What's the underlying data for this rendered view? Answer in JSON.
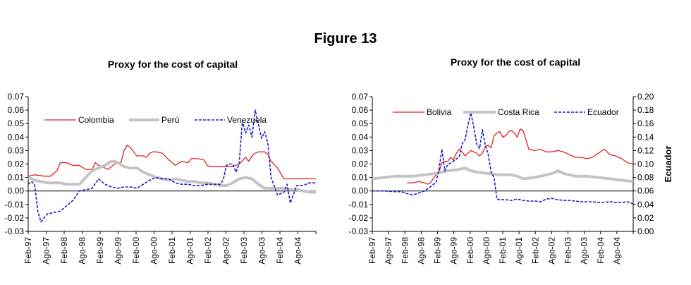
{
  "figure_title": "Figure 13",
  "chart_data": [
    {
      "type": "line",
      "title": "Proxy for the cost of capital",
      "xlabel": "",
      "ylabel": "",
      "ylim": [
        -0.03,
        0.07
      ],
      "yticks": [
        "0.07",
        "0.06",
        "0.05",
        "0.04",
        "0.03",
        "0.02",
        "0.01",
        "0.00",
        "-0.01",
        "-0.02",
        "-0.03"
      ],
      "x_range": [
        0,
        90
      ],
      "xticks": [
        "Feb-97",
        "Ago-97",
        "Feb-98",
        "Ago-98",
        "Feb-99",
        "Ago-99",
        "Feb-00",
        "Ago-00",
        "Feb-01",
        "Ago-01",
        "Feb-02",
        "Ago-02",
        "Feb-03",
        "Ago-03",
        "Feb-04",
        "Ago-04"
      ],
      "legend_position": "top",
      "series": [
        {
          "name": "Colombia",
          "color": "#e02020",
          "style": "solid",
          "x": [
            0,
            2,
            5,
            7,
            9,
            10,
            12,
            14,
            16,
            18,
            20,
            21,
            22,
            24,
            25,
            27,
            29,
            30,
            31,
            32,
            34,
            36,
            37,
            38,
            39,
            40,
            42,
            44,
            46,
            48,
            50,
            51,
            53,
            55,
            56,
            57,
            58,
            60,
            62,
            64,
            66,
            68,
            69,
            70,
            71,
            72,
            74,
            75,
            76,
            78,
            80,
            82,
            84,
            86,
            88,
            90
          ],
          "values": [
            0.011,
            0.012,
            0.011,
            0.011,
            0.015,
            0.021,
            0.021,
            0.019,
            0.019,
            0.016,
            0.016,
            0.021,
            0.019,
            0.017,
            0.016,
            0.02,
            0.021,
            0.03,
            0.034,
            0.032,
            0.026,
            0.026,
            0.025,
            0.028,
            0.029,
            0.029,
            0.028,
            0.023,
            0.019,
            0.022,
            0.021,
            0.024,
            0.024,
            0.023,
            0.019,
            0.018,
            0.018,
            0.018,
            0.018,
            0.018,
            0.02,
            0.025,
            0.022,
            0.026,
            0.028,
            0.029,
            0.029,
            0.027,
            0.022,
            0.017,
            0.009,
            0.009,
            0.009,
            0.009,
            0.009,
            0.009
          ]
        },
        {
          "name": "Perú",
          "color": "#c4c4c4",
          "style": "thick",
          "x": [
            0,
            2,
            4,
            6,
            8,
            10,
            12,
            14,
            16,
            18,
            20,
            22,
            24,
            26,
            27,
            28,
            30,
            32,
            34,
            36,
            38,
            40,
            42,
            44,
            46,
            48,
            50,
            52,
            54,
            56,
            58,
            60,
            62,
            64,
            66,
            68,
            70,
            72,
            74,
            76,
            78,
            80,
            82,
            84,
            86,
            88,
            90
          ],
          "values": [
            0.01,
            0.008,
            0.007,
            0.006,
            0.006,
            0.006,
            0.005,
            0.005,
            0.005,
            0.01,
            0.015,
            0.017,
            0.019,
            0.022,
            0.022,
            0.021,
            0.018,
            0.017,
            0.017,
            0.014,
            0.012,
            0.01,
            0.009,
            0.008,
            0.009,
            0.008,
            0.007,
            0.007,
            0.006,
            0.006,
            0.005,
            0.004,
            0.004,
            0.006,
            0.009,
            0.01,
            0.009,
            0.005,
            0.002,
            0.002,
            0.002,
            0.002,
            0.001,
            0.001,
            0.0,
            -0.001,
            -0.001
          ]
        },
        {
          "name": "Venezuela",
          "color": "#1a1acc",
          "style": "dashed",
          "x": [
            0,
            1,
            2,
            3,
            4,
            6,
            8,
            10,
            12,
            14,
            16,
            18,
            20,
            22,
            24,
            26,
            28,
            30,
            32,
            34,
            36,
            38,
            40,
            42,
            44,
            46,
            48,
            50,
            52,
            54,
            56,
            58,
            60,
            61,
            62,
            63,
            64,
            65,
            66,
            67,
            68,
            69,
            70,
            71,
            72,
            73,
            74,
            75,
            76,
            78,
            80,
            81,
            82,
            84,
            86,
            88,
            90
          ],
          "values": [
            0.005,
            0.007,
            0.005,
            -0.015,
            -0.023,
            -0.017,
            -0.016,
            -0.015,
            -0.011,
            -0.007,
            0.0,
            0.001,
            0.002,
            0.009,
            0.005,
            0.003,
            0.002,
            0.003,
            0.003,
            0.002,
            0.005,
            0.008,
            0.01,
            0.009,
            0.009,
            0.006,
            0.005,
            0.005,
            0.004,
            0.004,
            0.005,
            0.005,
            0.005,
            0.008,
            0.019,
            0.02,
            0.02,
            0.014,
            0.02,
            0.052,
            0.043,
            0.049,
            0.04,
            0.06,
            0.05,
            0.039,
            0.044,
            0.035,
            0.01,
            -0.003,
            -0.001,
            0.005,
            -0.009,
            0.004,
            0.004,
            0.006,
            0.006
          ]
        }
      ]
    },
    {
      "type": "line",
      "title": "Proxy for the cost of capital",
      "xlabel": "",
      "ylabel": "",
      "ylim": [
        -0.03,
        0.07
      ],
      "yticks": [
        "0.07",
        "0.06",
        "0.05",
        "0.04",
        "0.03",
        "0.02",
        "0.01",
        "0.00",
        "-0.01",
        "-0.02",
        "-0.03"
      ],
      "y2label": "Ecuador",
      "y2lim": [
        0.0,
        0.2
      ],
      "y2ticks": [
        "0.20",
        "0.18",
        "0.16",
        "0.14",
        "0.12",
        "0.10",
        "0.08",
        "0.06",
        "0.04",
        "0.02",
        "0.00"
      ],
      "x_range": [
        0,
        90
      ],
      "xticks": [
        "Feb-97",
        "Ago-97",
        "Feb-98",
        "Ago-98",
        "Feb-99",
        "Ago-99",
        "Feb-00",
        "Ago-00",
        "Feb-01",
        "Ago-01",
        "Feb-02",
        "Ago-02",
        "Feb-03",
        "Ago-03",
        "Feb-04",
        "Ago-04"
      ],
      "legend_position": "top",
      "series": [
        {
          "name": "Bolivia",
          "color": "#e02020",
          "style": "solid",
          "axis": "left",
          "x": [
            12,
            14,
            16,
            18,
            19,
            20,
            21,
            22,
            23,
            24,
            25,
            26,
            27,
            28,
            29,
            30,
            31,
            32,
            33,
            34,
            35,
            36,
            37,
            38,
            39,
            40,
            41,
            42,
            43,
            44,
            45,
            46,
            47,
            48,
            49,
            50,
            51,
            52,
            54,
            56,
            58,
            60,
            62,
            64,
            66,
            68,
            70,
            72,
            74,
            76,
            78,
            80,
            82,
            84,
            86,
            88,
            90
          ],
          "values": [
            0.006,
            0.006,
            0.007,
            0.006,
            0.005,
            0.006,
            0.009,
            0.012,
            0.014,
            0.021,
            0.022,
            0.022,
            0.025,
            0.023,
            0.028,
            0.031,
            0.029,
            0.026,
            0.028,
            0.03,
            0.029,
            0.028,
            0.026,
            0.028,
            0.033,
            0.034,
            0.032,
            0.041,
            0.043,
            0.044,
            0.04,
            0.041,
            0.044,
            0.045,
            0.043,
            0.04,
            0.046,
            0.045,
            0.031,
            0.03,
            0.031,
            0.029,
            0.029,
            0.03,
            0.029,
            0.027,
            0.025,
            0.025,
            0.024,
            0.025,
            0.028,
            0.031,
            0.027,
            0.026,
            0.024,
            0.021,
            0.02
          ]
        },
        {
          "name": "Costa Rica",
          "color": "#c4c4c4",
          "style": "thick",
          "axis": "left",
          "x": [
            0,
            4,
            8,
            10,
            14,
            18,
            22,
            26,
            30,
            32,
            34,
            36,
            40,
            44,
            48,
            50,
            52,
            56,
            60,
            62,
            64,
            66,
            70,
            74,
            78,
            82,
            86,
            90
          ],
          "values": [
            0.009,
            0.01,
            0.011,
            0.011,
            0.011,
            0.012,
            0.013,
            0.015,
            0.016,
            0.017,
            0.015,
            0.014,
            0.013,
            0.012,
            0.012,
            0.011,
            0.009,
            0.01,
            0.012,
            0.013,
            0.015,
            0.013,
            0.011,
            0.011,
            0.01,
            0.009,
            0.008,
            0.007
          ]
        },
        {
          "name": "Ecuador",
          "color": "#1a1acc",
          "style": "dashed",
          "axis": "right",
          "x": [
            0,
            4,
            8,
            10,
            12,
            14,
            16,
            18,
            20,
            22,
            23,
            24,
            25,
            26,
            28,
            30,
            31,
            32,
            33,
            34,
            35,
            36,
            37,
            38,
            39,
            40,
            41,
            42,
            43,
            44,
            46,
            48,
            50,
            52,
            54,
            56,
            58,
            60,
            62,
            64,
            66,
            68,
            70,
            72,
            74,
            76,
            78,
            80,
            82,
            84,
            86,
            88,
            90
          ],
          "values": [
            0.06,
            0.06,
            0.059,
            0.059,
            0.056,
            0.054,
            0.057,
            0.06,
            0.066,
            0.073,
            0.092,
            0.122,
            0.09,
            0.099,
            0.104,
            0.111,
            0.13,
            0.136,
            0.158,
            0.176,
            0.155,
            0.13,
            0.123,
            0.151,
            0.128,
            0.114,
            0.088,
            0.08,
            0.048,
            0.047,
            0.047,
            0.046,
            0.048,
            0.046,
            0.045,
            0.045,
            0.044,
            0.048,
            0.049,
            0.047,
            0.046,
            0.046,
            0.045,
            0.044,
            0.044,
            0.044,
            0.043,
            0.043,
            0.044,
            0.043,
            0.043,
            0.044,
            0.041
          ]
        }
      ]
    }
  ]
}
